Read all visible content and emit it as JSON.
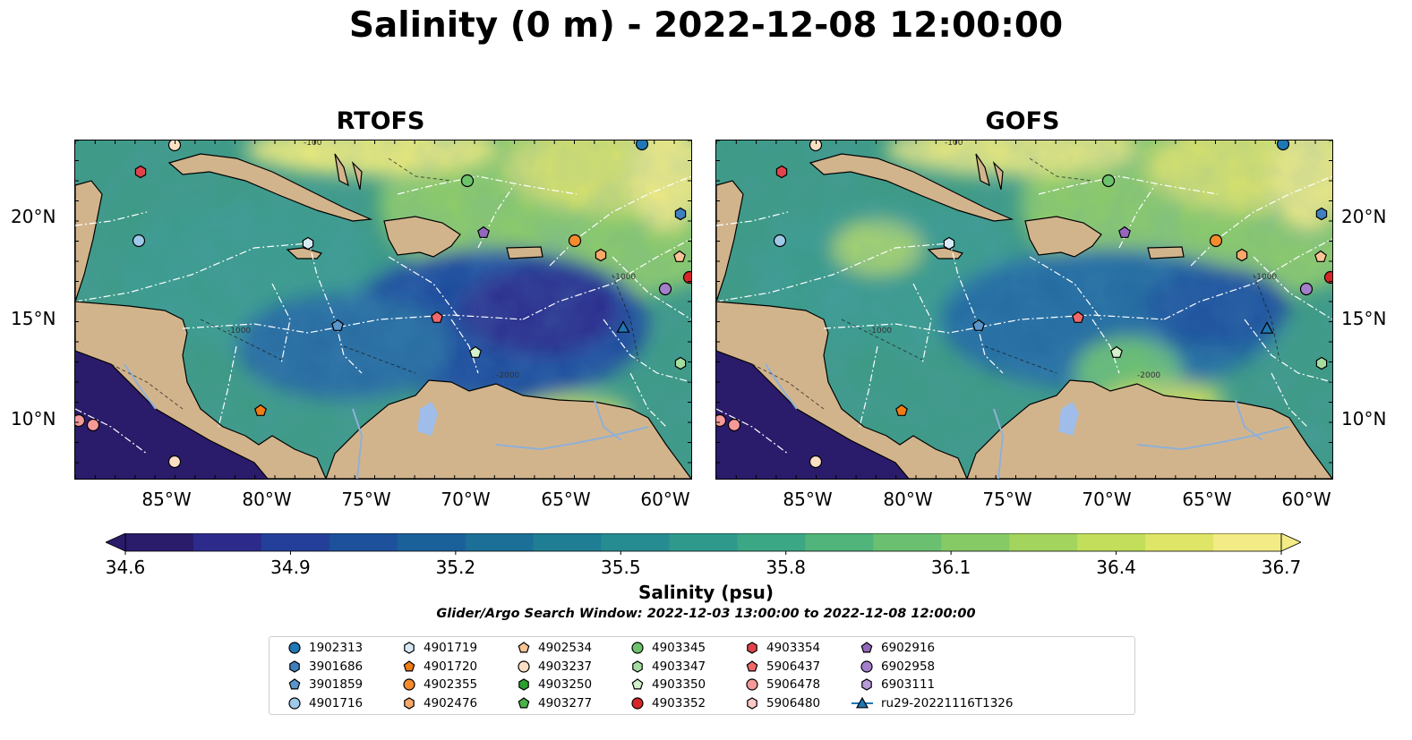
{
  "title": "Salinity (0 m) - 2022-12-08 12:00:00",
  "panels": [
    {
      "title": "RTOFS"
    },
    {
      "title": "GOFS"
    }
  ],
  "lat_ticks": [
    "20°N",
    "15°N",
    "10°N"
  ],
  "lon_ticks": [
    "85°W",
    "80°W",
    "75°W",
    "70°W",
    "65°W",
    "60°W"
  ],
  "contour_labels": [
    "-100",
    "-1000",
    "-2000"
  ],
  "colorbar": {
    "label": "Salinity (psu)",
    "ticks": [
      "34.6",
      "34.9",
      "35.2",
      "35.5",
      "35.8",
      "36.1",
      "36.4",
      "36.7"
    ],
    "min": 34.6,
    "max": 36.7,
    "colors": [
      "#2b1b6b",
      "#2c2b8c",
      "#243f9a",
      "#1d519b",
      "#1a619a",
      "#1c6f97",
      "#207e94",
      "#278c91",
      "#2f9a8c",
      "#3ca784",
      "#50b47b",
      "#6ac070",
      "#86ca66",
      "#a3d45e",
      "#c2de5b",
      "#dfe566",
      "#f3ec86"
    ]
  },
  "search_window": "Glider/Argo Search Window: 2022-12-03 13:00:00 to 2022-12-08 12:00:00",
  "legend": [
    {
      "label": "1902313",
      "marker": "circle",
      "color": "#1f77b4"
    },
    {
      "label": "3901686",
      "marker": "hexagon",
      "color": "#3f7fbf"
    },
    {
      "label": "3901859",
      "marker": "pentagon",
      "color": "#5a96cb"
    },
    {
      "label": "4901716",
      "marker": "circle",
      "color": "#9ec9e8"
    },
    {
      "label": "4901719",
      "marker": "hexagon",
      "color": "#d6eaf8"
    },
    {
      "label": "4901720",
      "marker": "pentagon",
      "color": "#f07c12"
    },
    {
      "label": "4902355",
      "marker": "circle",
      "color": "#f58b2c"
    },
    {
      "label": "4902476",
      "marker": "hexagon",
      "color": "#f8a868"
    },
    {
      "label": "4902534",
      "marker": "pentagon",
      "color": "#f9c496"
    },
    {
      "label": "4903237",
      "marker": "circle",
      "color": "#fde0c4"
    },
    {
      "label": "4903250",
      "marker": "hexagon",
      "color": "#2ca02c"
    },
    {
      "label": "4903277",
      "marker": "pentagon",
      "color": "#49b349"
    },
    {
      "label": "4903345",
      "marker": "circle",
      "color": "#6cc36c"
    },
    {
      "label": "4903347",
      "marker": "hexagon",
      "color": "#a5dda0"
    },
    {
      "label": "4903350",
      "marker": "pentagon",
      "color": "#d2f1cc"
    },
    {
      "label": "4903352",
      "marker": "circle",
      "color": "#d62728"
    },
    {
      "label": "4903354",
      "marker": "hexagon",
      "color": "#e2434a"
    },
    {
      "label": "5906437",
      "marker": "pentagon",
      "color": "#f0696a"
    },
    {
      "label": "5906478",
      "marker": "circle",
      "color": "#f59999"
    },
    {
      "label": "5906480",
      "marker": "hexagon",
      "color": "#fbc8c8"
    },
    {
      "label": "6902916",
      "marker": "pentagon",
      "color": "#9467bd"
    },
    {
      "label": "6902958",
      "marker": "circle",
      "color": "#a57fcb"
    },
    {
      "label": "6903111",
      "marker": "hexagon",
      "color": "#b99ad8"
    },
    {
      "label": "ru29-20221116T1326",
      "marker": "triangle-line",
      "color": "#1f77b4"
    }
  ],
  "colors": {
    "land": "#d2b48c",
    "rivers": "#8fb0d6",
    "eez_lines": "#ffffff"
  }
}
